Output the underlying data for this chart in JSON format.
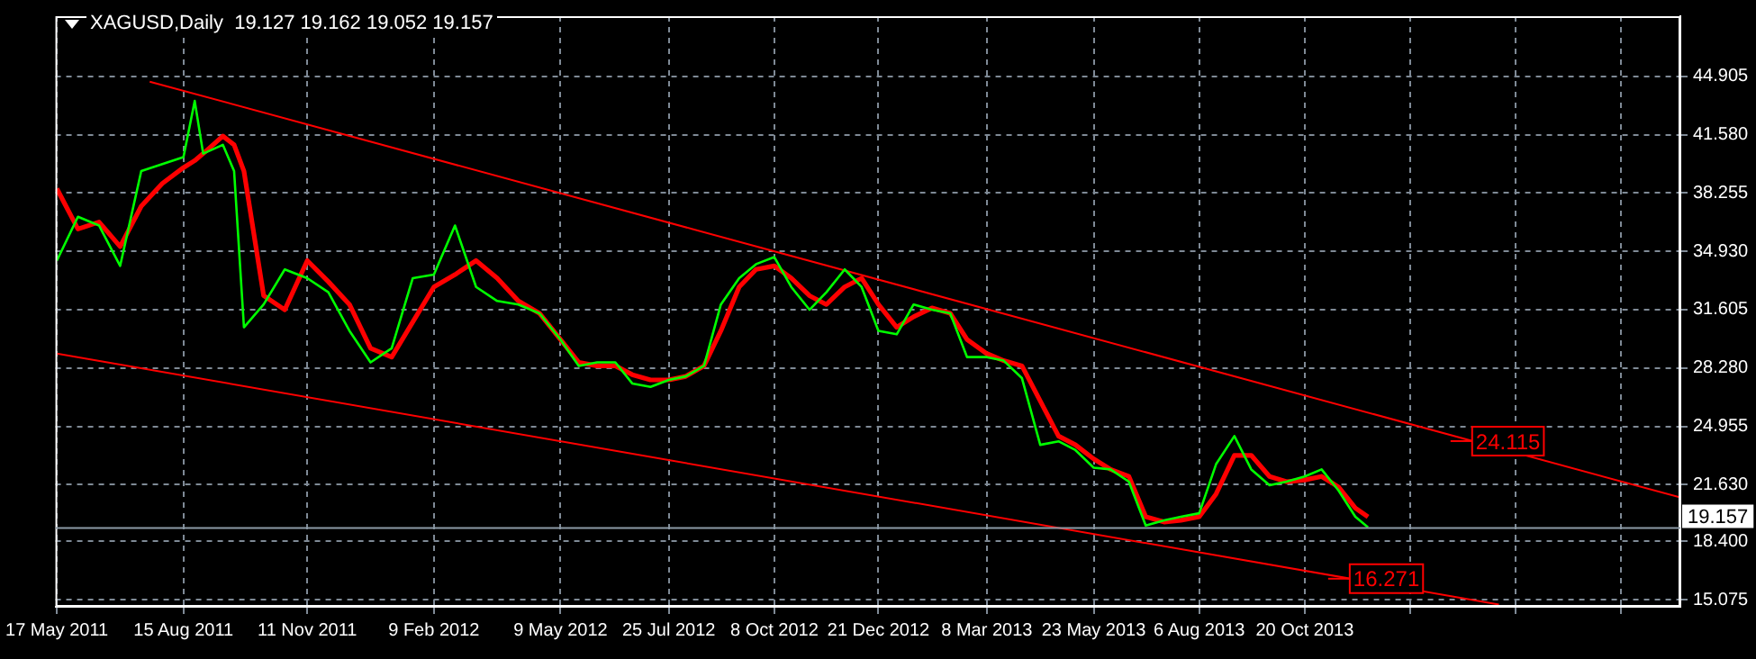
{
  "chart_data": {
    "type": "line",
    "title": "XAGUSD,Daily  19.127 19.162 19.052 19.157",
    "x": [
      "2011-05-17",
      "2011-06-01",
      "2011-06-16",
      "2011-07-01",
      "2011-07-16",
      "2011-07-31",
      "2011-08-15",
      "2011-08-23",
      "2011-08-29",
      "2011-09-12",
      "2011-09-20",
      "2011-09-27",
      "2011-10-11",
      "2011-10-26",
      "2011-11-11",
      "2011-11-26",
      "2011-12-11",
      "2011-12-26",
      "2012-01-10",
      "2012-01-25",
      "2012-02-09",
      "2012-02-24",
      "2012-03-10",
      "2012-03-25",
      "2012-04-09",
      "2012-04-24",
      "2012-05-09",
      "2012-05-22",
      "2012-06-04",
      "2012-06-17",
      "2012-06-29",
      "2012-07-12",
      "2012-07-25",
      "2012-08-06",
      "2012-08-19",
      "2012-08-31",
      "2012-09-13",
      "2012-09-25",
      "2012-10-08",
      "2012-10-20",
      "2012-11-02",
      "2012-11-14",
      "2012-11-27",
      "2012-12-09",
      "2012-12-21",
      "2013-01-03",
      "2013-01-15",
      "2013-01-28",
      "2013-02-10",
      "2013-02-22",
      "2013-03-08",
      "2013-03-20",
      "2013-04-02",
      "2013-04-15",
      "2013-04-28",
      "2013-05-10",
      "2013-05-23",
      "2013-06-04",
      "2013-06-17",
      "2013-06-29",
      "2013-07-12",
      "2013-07-24",
      "2013-08-06",
      "2013-08-18",
      "2013-08-31",
      "2013-09-12",
      "2013-09-25",
      "2013-10-07",
      "2013-10-20",
      "2013-11-01",
      "2013-11-13",
      "2013-11-25",
      "2013-12-04"
    ],
    "series": [
      {
        "color": "#00ff00",
        "values": [
          34.4,
          36.9,
          36.4,
          34.1,
          39.5,
          39.9,
          40.3,
          43.5,
          40.5,
          41.0,
          39.5,
          30.6,
          31.9,
          33.9,
          33.4,
          32.6,
          30.4,
          28.6,
          29.4,
          33.4,
          33.6,
          36.4,
          32.9,
          32.1,
          31.9,
          31.4,
          29.9,
          28.4,
          28.6,
          28.6,
          27.4,
          27.2,
          27.6,
          27.8,
          28.4,
          31.9,
          33.4,
          34.2,
          34.6,
          32.9,
          31.6,
          32.6,
          33.9,
          32.9,
          30.4,
          30.2,
          31.9,
          31.6,
          31.4,
          28.9,
          28.9,
          28.7,
          27.7,
          23.9,
          24.1,
          23.6,
          22.6,
          22.5,
          21.8,
          19.3,
          19.6,
          19.8,
          20.0,
          22.8,
          24.4,
          22.5,
          21.6,
          21.8,
          22.1,
          22.5,
          21.3,
          19.8,
          19.2
        ]
      },
      {
        "color": "#ff0000",
        "values": [
          38.5,
          36.2,
          36.6,
          35.2,
          37.5,
          38.8,
          39.7,
          40.1,
          40.5,
          41.5,
          41.0,
          39.5,
          32.4,
          31.6,
          34.4,
          33.2,
          31.9,
          29.4,
          28.9,
          30.9,
          32.9,
          33.6,
          34.4,
          33.4,
          32.1,
          31.4,
          29.9,
          28.6,
          28.4,
          28.4,
          27.9,
          27.6,
          27.6,
          27.8,
          28.4,
          30.4,
          32.9,
          33.9,
          34.1,
          33.4,
          32.4,
          31.9,
          32.9,
          33.4,
          31.9,
          30.6,
          31.2,
          31.7,
          31.4,
          29.9,
          29.1,
          28.7,
          28.4,
          26.4,
          24.4,
          23.9,
          23.1,
          22.5,
          22.1,
          19.8,
          19.5,
          19.6,
          19.8,
          21.1,
          23.3,
          23.3,
          22.1,
          21.8,
          21.9,
          22.1,
          21.5,
          20.3,
          19.8
        ]
      },
      {
        "color": "#ff0000",
        "x": [
          "2011-07-22",
          "2014-07-14"
        ],
        "values": [
          44.6,
          20.9
        ]
      },
      {
        "color": "#ff0000",
        "x": [
          "2011-05-17",
          "2014-03-07"
        ],
        "values": [
          29.1,
          14.8
        ]
      }
    ],
    "xlim": [
      "2011-05-16",
      "2014-07-14"
    ],
    "xticks": [
      {
        "value": "2011-05-17",
        "label": "17 May 2011"
      },
      {
        "value": "2011-08-15",
        "label": "15 Aug 2011"
      },
      {
        "value": "2011-11-11",
        "label": "11 Nov 2011"
      },
      {
        "value": "2012-02-09",
        "label": "9 Feb 2012"
      },
      {
        "value": "2012-05-09",
        "label": "9 May 2012"
      },
      {
        "value": "2012-07-25",
        "label": "25 Jul 2012"
      },
      {
        "value": "2012-10-08",
        "label": "8 Oct 2012"
      },
      {
        "value": "2012-12-21",
        "label": "21 Dec 2012"
      },
      {
        "value": "2013-03-08",
        "label": "8 Mar 2013"
      },
      {
        "value": "2013-05-23",
        "label": "23 May 2013"
      },
      {
        "value": "2013-08-06",
        "label": "6 Aug 2013"
      },
      {
        "value": "2013-10-20",
        "label": "20 Oct 2013"
      },
      {
        "value": "2014-01-03",
        "label": null
      },
      {
        "value": "2014-03-19",
        "label": null
      },
      {
        "value": "2014-06-02",
        "label": null
      }
    ],
    "ylim": [
      14.67,
      48.33
    ],
    "yticks": [
      15.075,
      {
        "value": 18.4,
        "label": "18.400"
      },
      {
        "value": 21.63,
        "label": "21.630"
      },
      24.955,
      {
        "value": 28.28,
        "label": "28.280"
      },
      31.605,
      {
        "value": 34.93,
        "label": "34.930"
      },
      38.255,
      {
        "value": 41.58,
        "label": "41.580"
      },
      44.905
    ],
    "ref_lines": [
      {
        "axis": "y",
        "value": 19.157,
        "label": "19.157",
        "color": "#8c9aa6"
      }
    ],
    "annotations": [
      {
        "text": "24.115",
        "x": "2014-02-16",
        "y": 24.115
      },
      {
        "text": "16.271",
        "x": "2013-11-21",
        "y": 16.271
      }
    ],
    "grid": true,
    "marker": "none",
    "line_style": "solid"
  }
}
